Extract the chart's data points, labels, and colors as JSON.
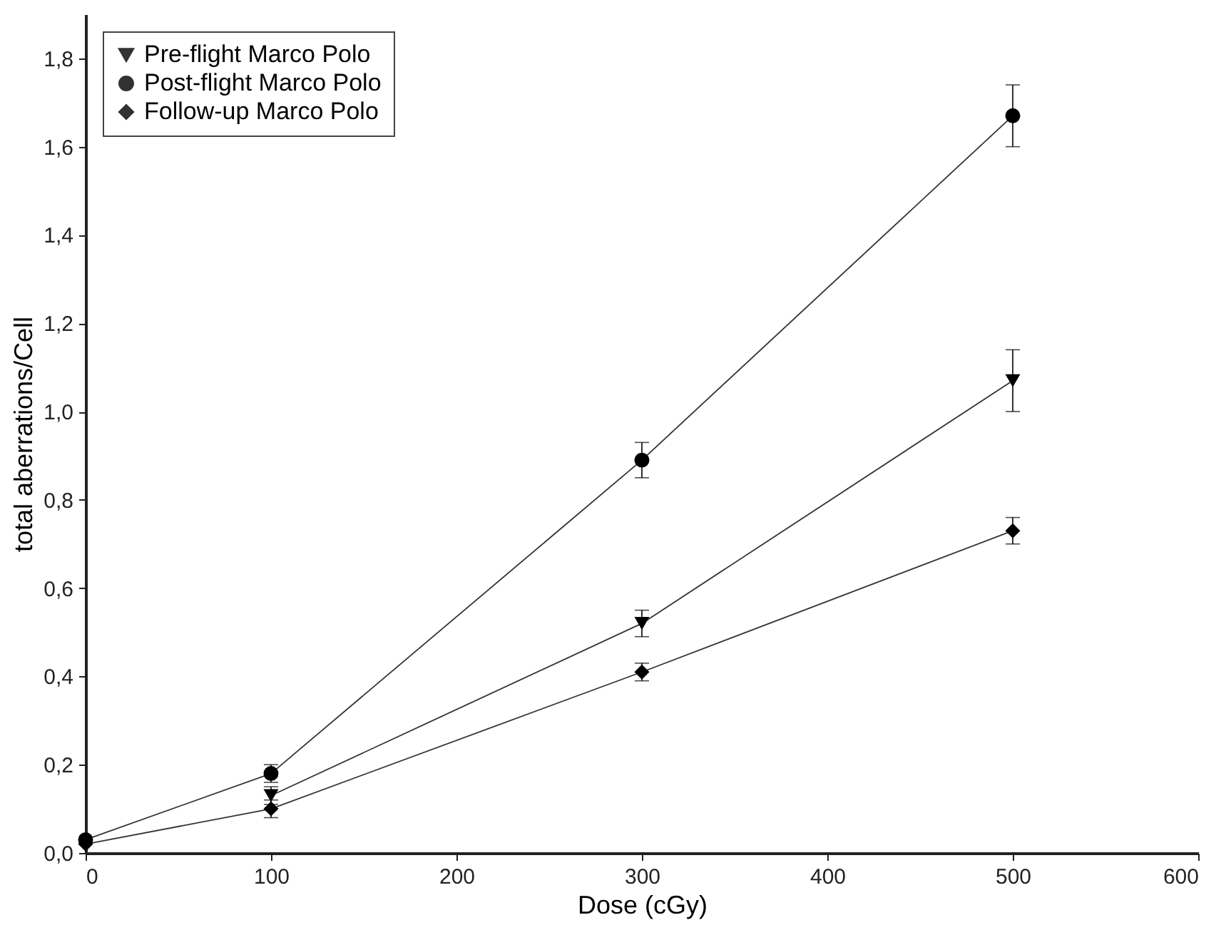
{
  "chart_data": {
    "type": "line",
    "xlabel": "Dose (cGy)",
    "ylabel": "total aberrations/Cell",
    "x": [
      0,
      100,
      300,
      500
    ],
    "series": [
      {
        "name": "Pre-flight Marco Polo",
        "color": "#000000",
        "marker": "triangle",
        "values": [
          null,
          0.13,
          0.52,
          1.07
        ],
        "errors": [
          null,
          0.02,
          0.03,
          0.07
        ]
      },
      {
        "name": "Post-flight Marco Polo",
        "color": "#000000",
        "marker": "circle",
        "values": [
          0.03,
          0.18,
          0.89,
          1.67
        ],
        "errors": [
          null,
          0.02,
          0.04,
          0.07
        ]
      },
      {
        "name": "Follow-up Marco Polo",
        "color": "#000000",
        "marker": "diamond",
        "values": [
          0.02,
          0.1,
          0.41,
          0.73
        ],
        "errors": [
          null,
          0.02,
          0.02,
          0.03
        ]
      }
    ],
    "xlim": [
      0,
      600
    ],
    "xticks": [
      0,
      100,
      200,
      300,
      400,
      500,
      600
    ],
    "ylim": [
      0,
      1.9
    ],
    "yticks": [
      {
        "value": 0,
        "label": "0,0"
      },
      {
        "value": 0.2,
        "label": "0,2"
      },
      {
        "value": 0.4,
        "label": "0,4"
      },
      {
        "value": 0.6,
        "label": "0,6"
      },
      {
        "value": 0.8,
        "label": "0,8"
      },
      {
        "value": 1.0,
        "label": "1,0"
      },
      {
        "value": 1.2,
        "label": "1,2"
      },
      {
        "value": 1.4,
        "label": "1,4"
      },
      {
        "value": 1.6,
        "label": "1,6"
      },
      {
        "value": 1.8,
        "label": "1,8"
      }
    ],
    "grid": false,
    "legend": "top left",
    "line_style": "solid"
  }
}
